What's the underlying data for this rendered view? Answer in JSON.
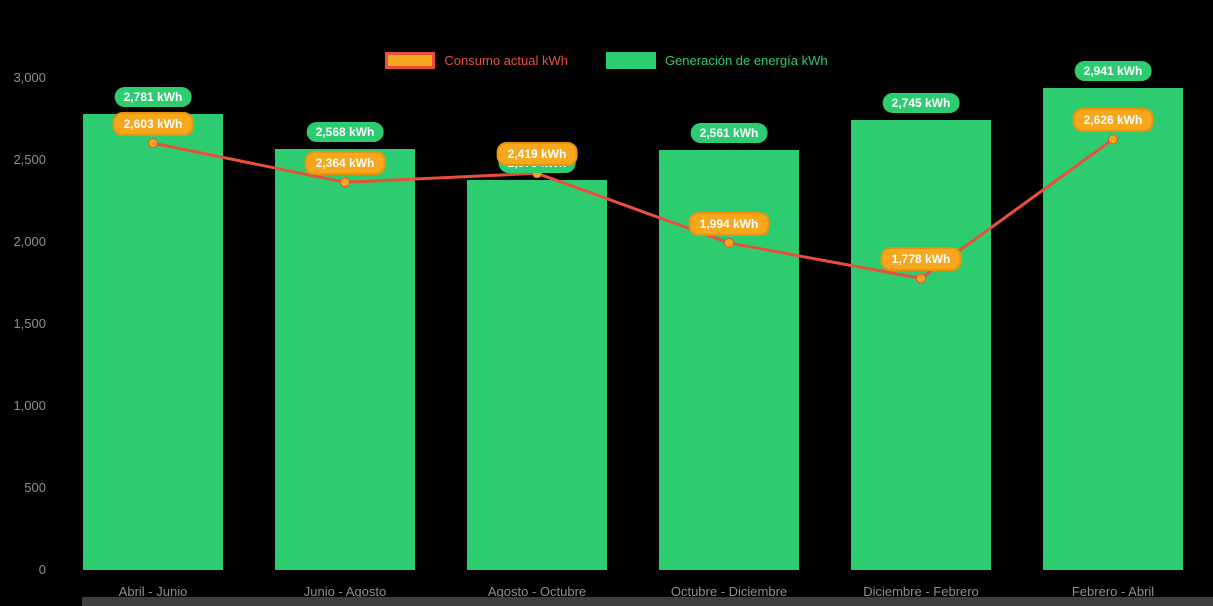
{
  "chart_data": {
    "type": "bar",
    "subtype": "combo-bar-line",
    "title": "",
    "categories": [
      "Abril - Junio",
      "Junio - Agosto",
      "Agosto - Octubre",
      "Octubre - Diciembre",
      "Diciembre - Febrero",
      "Febrero - Abril"
    ],
    "series": [
      {
        "name": "Consumo actual kWh",
        "type": "line",
        "color": "#e8503c",
        "marker_color": "#f6a71c",
        "values": [
          2603,
          2364,
          2419,
          1994,
          1778,
          2626
        ],
        "labels": [
          "2,603 kWh",
          "2,364 kWh",
          "2,419 kWh",
          "1,994 kWh",
          "1,778 kWh",
          "2,626 kWh"
        ]
      },
      {
        "name": "Generación de energía kWh",
        "type": "bar",
        "color": "#2ecc71",
        "values": [
          2781,
          2568,
          2379,
          2561,
          2745,
          2941
        ],
        "labels": [
          "2,781 kWh",
          "2,568 kWh",
          "2,379 kWh",
          "2,561 kWh",
          "2,745 kWh",
          "2,941 kWh"
        ]
      }
    ],
    "ylim": [
      0,
      3000
    ],
    "ytick_values": [
      3000,
      2500,
      2000,
      1500,
      1000,
      500,
      0
    ],
    "ytick_labels": [
      "3,000",
      "2,500",
      "2,000",
      "1,500",
      "1,000",
      "500",
      "0"
    ],
    "xlabel": "",
    "ylabel": "",
    "grid": false,
    "legend_position": "top",
    "background_color": "#000000",
    "axis_text_color": "#8f8f8f"
  }
}
